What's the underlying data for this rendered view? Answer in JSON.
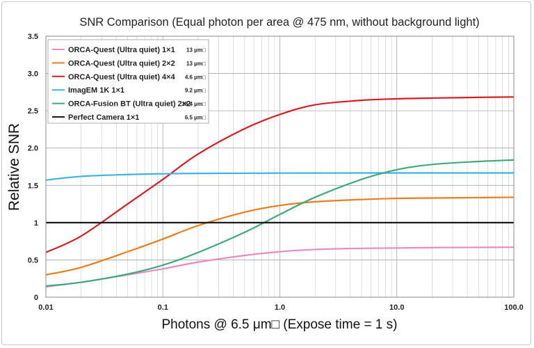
{
  "chart_data": {
    "type": "line",
    "title": "SNR Comparison (Equal photon per area @ 475 nm, without background light)",
    "xlabel": "Photons @ 6.5 μm□ (Expose time = 1 s)",
    "ylabel": "Relative SNR",
    "xscale": "log",
    "xlim": [
      0.01,
      100.0
    ],
    "ylim": [
      0,
      3.5
    ],
    "x_ticks": [
      "0.01",
      "0.1",
      "1.0",
      "10.0",
      "100.0"
    ],
    "y_ticks": [
      "0",
      "0.5",
      "1",
      "1.5",
      "2.0",
      "2.5",
      "3.0",
      "3.5"
    ],
    "grid": true,
    "legend_position": "top-left",
    "series": [
      {
        "name": "ORCA-Quest (Ultra quiet) 1×1",
        "size": "13 μm□",
        "color": "#e88bbd",
        "x": [
          0.01,
          0.02,
          0.05,
          0.1,
          0.2,
          0.5,
          1.0,
          2.0,
          5.0,
          10.0,
          20.0,
          50.0,
          100.0
        ],
        "y": [
          0.14,
          0.2,
          0.3,
          0.38,
          0.47,
          0.56,
          0.61,
          0.64,
          0.655,
          0.66,
          0.665,
          0.668,
          0.67
        ]
      },
      {
        "name": "ORCA-Quest (Ultra quiet) 2×2",
        "size": "13 μm□",
        "color": "#ea7d1c",
        "x": [
          0.01,
          0.02,
          0.05,
          0.1,
          0.2,
          0.5,
          1.0,
          2.0,
          5.0,
          10.0,
          20.0,
          50.0,
          100.0
        ],
        "y": [
          0.3,
          0.4,
          0.61,
          0.78,
          0.96,
          1.14,
          1.23,
          1.28,
          1.31,
          1.325,
          1.33,
          1.335,
          1.34
        ]
      },
      {
        "name": "ORCA-Quest (Ultra quiet) 4×4",
        "size": "4.6 μm□",
        "color": "#d71d24",
        "x": [
          0.01,
          0.02,
          0.05,
          0.1,
          0.2,
          0.5,
          1.0,
          2.0,
          5.0,
          10.0,
          20.0,
          50.0,
          100.0
        ],
        "y": [
          0.6,
          0.82,
          1.25,
          1.58,
          1.92,
          2.26,
          2.45,
          2.58,
          2.64,
          2.66,
          2.67,
          2.68,
          2.685
        ]
      },
      {
        "name": "ImagEM 1K 1×1",
        "size": "9.2 μm□",
        "color": "#3fb1e3",
        "x": [
          0.01,
          0.02,
          0.05,
          0.1,
          0.2,
          0.5,
          1.0,
          2.0,
          5.0,
          10.0,
          20.0,
          50.0,
          100.0
        ],
        "y": [
          1.57,
          1.62,
          1.645,
          1.655,
          1.66,
          1.662,
          1.664,
          1.665,
          1.666,
          1.666,
          1.666,
          1.666,
          1.666
        ]
      },
      {
        "name": "ORCA-Fusion BT (Ultra quiet) 2×2",
        "size": "18.4 μm□",
        "color": "#3faa79",
        "x": [
          0.01,
          0.02,
          0.05,
          0.1,
          0.2,
          0.5,
          1.0,
          2.0,
          5.0,
          10.0,
          20.0,
          50.0,
          100.0
        ],
        "y": [
          0.15,
          0.2,
          0.31,
          0.43,
          0.6,
          0.87,
          1.11,
          1.34,
          1.58,
          1.71,
          1.78,
          1.82,
          1.84
        ]
      },
      {
        "name": "Perfect Camera 1×1",
        "size": "6.5 μm□",
        "color": "#1a1a1a",
        "x": [
          0.01,
          100.0
        ],
        "y": [
          1.0,
          1.0
        ]
      }
    ]
  }
}
